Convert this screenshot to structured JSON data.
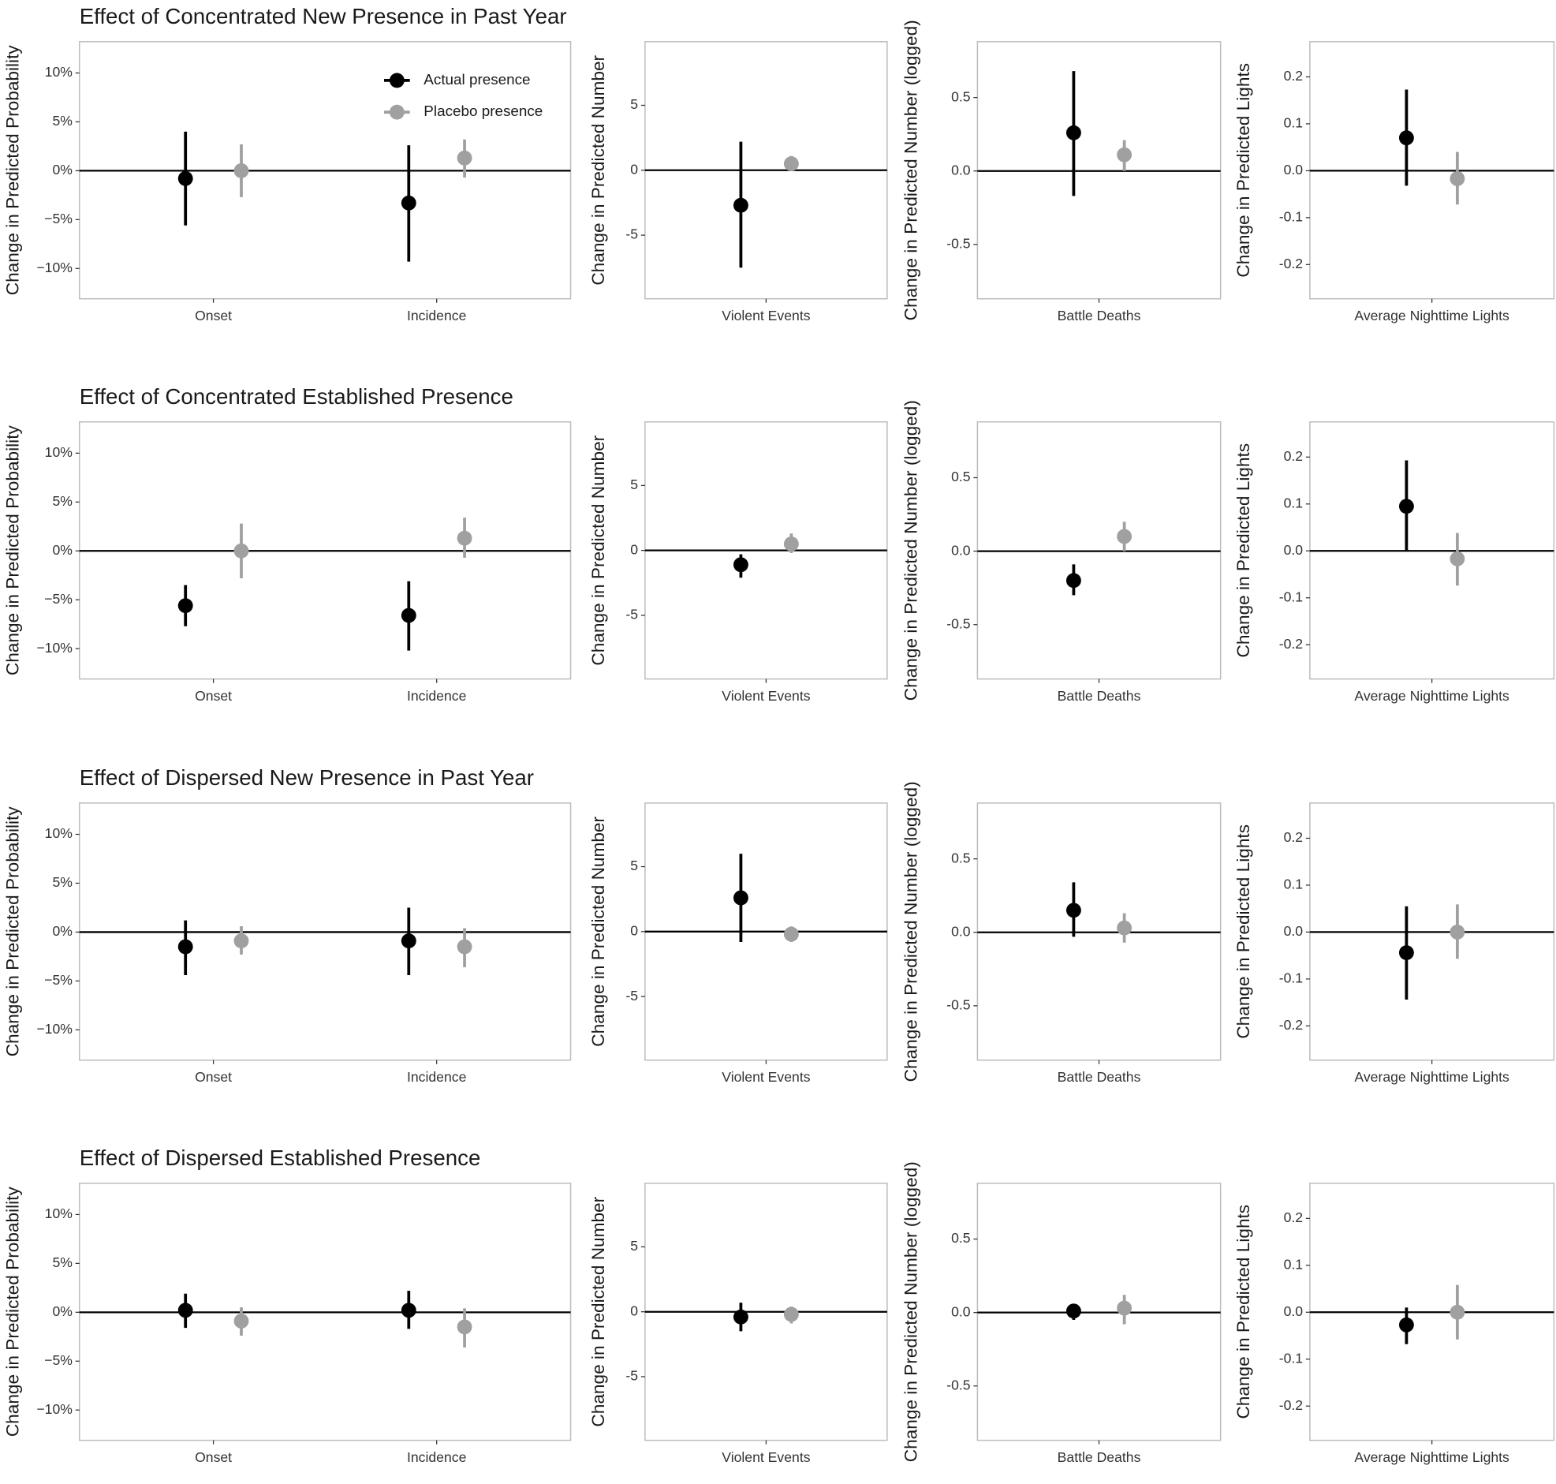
{
  "chart_data": [
    {
      "type": "pointrange",
      "title": "Effect of Concentrated New Presence in Past Year",
      "ylabel": "Change in Predicted Probability",
      "categories": [
        "Onset",
        "Incidence"
      ],
      "ylim": [
        -13.1,
        13.2
      ],
      "yticks": [
        {
          "value": 10,
          "label": "10%"
        },
        {
          "value": 5,
          "label": "5%"
        },
        {
          "value": 0,
          "label": "0%"
        },
        {
          "value": -5,
          "label": "−5%"
        },
        {
          "value": -10,
          "label": "−10%"
        }
      ],
      "reference_line": 0,
      "legend": "top-right",
      "series": [
        {
          "name": "Actual presence",
          "color": "#000000",
          "values": [
            -0.8,
            -3.3
          ],
          "lower": [
            -5.6,
            -9.3
          ],
          "upper": [
            4.0,
            2.6
          ]
        },
        {
          "name": "Placebo presence",
          "color": "#a0a0a0",
          "values": [
            0,
            1.3
          ],
          "lower": [
            -2.7,
            -0.7
          ],
          "upper": [
            2.7,
            3.2
          ]
        }
      ]
    },
    {
      "type": "pointrange",
      "ylabel": "Change in Predicted Number",
      "categories": [
        "Violent Events"
      ],
      "ylim": [
        -9.9,
        9.9
      ],
      "yticks": [
        5,
        0,
        -5
      ],
      "reference_line": 0,
      "series": [
        {
          "color": "#000000",
          "values": [
            -2.7
          ],
          "lower": [
            -7.5
          ],
          "upper": [
            2.2
          ]
        },
        {
          "color": "#a0a0a0",
          "values": [
            0.5
          ],
          "lower": [
            0.0
          ],
          "upper": [
            1.1
          ]
        }
      ]
    },
    {
      "type": "pointrange",
      "ylabel": "Change in Predicted Number (logged)",
      "categories": [
        "Battle Deaths"
      ],
      "ylim": [
        -0.87,
        0.88
      ],
      "yticks": [
        0.5,
        {
          "value": 0,
          "label": "0.0"
        },
        -0.5
      ],
      "reference_line": 0,
      "series": [
        {
          "color": "#000000",
          "values": [
            0.26
          ],
          "lower": [
            -0.17
          ],
          "upper": [
            0.68
          ]
        },
        {
          "color": "#a0a0a0",
          "values": [
            0.11
          ],
          "lower": [
            0.0
          ],
          "upper": [
            0.21
          ]
        }
      ]
    },
    {
      "type": "pointrange",
      "ylabel": "Change in Predicted Lights",
      "categories": [
        "Average Nighttime Lights"
      ],
      "ylim": [
        -0.273,
        0.275
      ],
      "yticks": [
        0.2,
        0.1,
        {
          "value": 0,
          "label": "0.0"
        },
        -0.1,
        -0.2
      ],
      "reference_line": 0,
      "series": [
        {
          "color": "#000000",
          "values": [
            0.07
          ],
          "lower": [
            -0.032
          ],
          "upper": [
            0.173
          ]
        },
        {
          "color": "#a0a0a0",
          "values": [
            -0.017
          ],
          "lower": [
            -0.072
          ],
          "upper": [
            0.04
          ]
        }
      ]
    },
    {
      "type": "pointrange",
      "title": "Effect of Concentrated Established Presence",
      "ylabel": "Change in Predicted Probability",
      "categories": [
        "Onset",
        "Incidence"
      ],
      "ylim": [
        -13.1,
        13.2
      ],
      "yticks": [
        {
          "value": 10,
          "label": "10%"
        },
        {
          "value": 5,
          "label": "5%"
        },
        {
          "value": 0,
          "label": "0%"
        },
        {
          "value": -5,
          "label": "−5%"
        },
        {
          "value": -10,
          "label": "−10%"
        }
      ],
      "reference_line": 0,
      "series": [
        {
          "color": "#000000",
          "values": [
            -5.6,
            -6.6
          ],
          "lower": [
            -7.7,
            -10.2
          ],
          "upper": [
            -3.5,
            -3.1
          ]
        },
        {
          "color": "#a0a0a0",
          "values": [
            0,
            1.3
          ],
          "lower": [
            -2.8,
            -0.7
          ],
          "upper": [
            2.8,
            3.4
          ]
        }
      ]
    },
    {
      "type": "pointrange",
      "ylabel": "Change in Predicted Number",
      "categories": [
        "Violent Events"
      ],
      "ylim": [
        -9.9,
        9.9
      ],
      "yticks": [
        5,
        0,
        -5
      ],
      "reference_line": 0,
      "series": [
        {
          "color": "#000000",
          "values": [
            -1.1
          ],
          "lower": [
            -2.1
          ],
          "upper": [
            -0.3
          ]
        },
        {
          "color": "#a0a0a0",
          "values": [
            0.5
          ],
          "lower": [
            -0.2
          ],
          "upper": [
            1.3
          ]
        }
      ]
    },
    {
      "type": "pointrange",
      "ylabel": "Change in Predicted Number (logged)",
      "categories": [
        "Battle Deaths"
      ],
      "ylim": [
        -0.87,
        0.88
      ],
      "yticks": [
        0.5,
        {
          "value": 0,
          "label": "0.0"
        },
        -0.5
      ],
      "reference_line": 0,
      "series": [
        {
          "color": "#000000",
          "values": [
            -0.2
          ],
          "lower": [
            -0.3
          ],
          "upper": [
            -0.09
          ]
        },
        {
          "color": "#a0a0a0",
          "values": [
            0.1
          ],
          "lower": [
            0.0
          ],
          "upper": [
            0.2
          ]
        }
      ]
    },
    {
      "type": "pointrange",
      "ylabel": "Change in Predicted Lights",
      "categories": [
        "Average Nighttime Lights"
      ],
      "ylim": [
        -0.273,
        0.275
      ],
      "yticks": [
        0.2,
        0.1,
        {
          "value": 0,
          "label": "0.0"
        },
        -0.1,
        -0.2
      ],
      "reference_line": 0,
      "series": [
        {
          "color": "#000000",
          "values": [
            0.095
          ],
          "lower": [
            0.0
          ],
          "upper": [
            0.193
          ]
        },
        {
          "color": "#a0a0a0",
          "values": [
            -0.017
          ],
          "lower": [
            -0.074
          ],
          "upper": [
            0.038
          ]
        }
      ]
    },
    {
      "type": "pointrange",
      "title": "Effect of Dispersed New Presence in Past Year",
      "ylabel": "Change in Predicted Probability",
      "categories": [
        "Onset",
        "Incidence"
      ],
      "ylim": [
        -13.1,
        13.2
      ],
      "yticks": [
        {
          "value": 10,
          "label": "10%"
        },
        {
          "value": 5,
          "label": "5%"
        },
        {
          "value": 0,
          "label": "0%"
        },
        {
          "value": -5,
          "label": "−5%"
        },
        {
          "value": -10,
          "label": "−10%"
        }
      ],
      "reference_line": 0,
      "series": [
        {
          "color": "#000000",
          "values": [
            -1.5,
            -0.9
          ],
          "lower": [
            -4.4,
            -4.4
          ],
          "upper": [
            1.2,
            2.5
          ]
        },
        {
          "color": "#a0a0a0",
          "values": [
            -0.9,
            -1.5
          ],
          "lower": [
            -2.3,
            -3.6
          ],
          "upper": [
            0.6,
            0.4
          ]
        }
      ]
    },
    {
      "type": "pointrange",
      "ylabel": "Change in Predicted Number",
      "categories": [
        "Violent Events"
      ],
      "ylim": [
        -9.9,
        9.9
      ],
      "yticks": [
        5,
        0,
        -5
      ],
      "reference_line": 0,
      "series": [
        {
          "color": "#000000",
          "values": [
            2.6
          ],
          "lower": [
            -0.8
          ],
          "upper": [
            6.0
          ]
        },
        {
          "color": "#a0a0a0",
          "values": [
            -0.2
          ],
          "lower": [
            -0.8
          ],
          "upper": [
            0.4
          ]
        }
      ]
    },
    {
      "type": "pointrange",
      "ylabel": "Change in Predicted Number (logged)",
      "categories": [
        "Battle Deaths"
      ],
      "ylim": [
        -0.87,
        0.88
      ],
      "yticks": [
        0.5,
        {
          "value": 0,
          "label": "0.0"
        },
        -0.5
      ],
      "reference_line": 0,
      "series": [
        {
          "color": "#000000",
          "values": [
            0.15
          ],
          "lower": [
            -0.03
          ],
          "upper": [
            0.34
          ]
        },
        {
          "color": "#a0a0a0",
          "values": [
            0.03
          ],
          "lower": [
            -0.07
          ],
          "upper": [
            0.13
          ]
        }
      ]
    },
    {
      "type": "pointrange",
      "ylabel": "Change in Predicted Lights",
      "categories": [
        "Average Nighttime Lights"
      ],
      "ylim": [
        -0.273,
        0.275
      ],
      "yticks": [
        0.2,
        0.1,
        {
          "value": 0,
          "label": "0.0"
        },
        -0.1,
        -0.2
      ],
      "reference_line": 0,
      "series": [
        {
          "color": "#000000",
          "values": [
            -0.044
          ],
          "lower": [
            -0.144
          ],
          "upper": [
            0.055
          ]
        },
        {
          "color": "#a0a0a0",
          "values": [
            0.0
          ],
          "lower": [
            -0.057
          ],
          "upper": [
            0.059
          ]
        }
      ]
    },
    {
      "type": "pointrange",
      "title": "Effect of Dispersed Established Presence",
      "ylabel": "Change in Predicted Probability",
      "categories": [
        "Onset",
        "Incidence"
      ],
      "ylim": [
        -13.1,
        13.2
      ],
      "yticks": [
        {
          "value": 10,
          "label": "10%"
        },
        {
          "value": 5,
          "label": "5%"
        },
        {
          "value": 0,
          "label": "0%"
        },
        {
          "value": -5,
          "label": "−5%"
        },
        {
          "value": -10,
          "label": "−10%"
        }
      ],
      "reference_line": 0,
      "series": [
        {
          "color": "#000000",
          "values": [
            0.2,
            0.2
          ],
          "lower": [
            -1.6,
            -1.7
          ],
          "upper": [
            1.9,
            2.2
          ]
        },
        {
          "color": "#a0a0a0",
          "values": [
            -0.9,
            -1.5
          ],
          "lower": [
            -2.4,
            -3.6
          ],
          "upper": [
            0.5,
            0.4
          ]
        }
      ]
    },
    {
      "type": "pointrange",
      "ylabel": "Change in Predicted Number",
      "categories": [
        "Violent Events"
      ],
      "ylim": [
        -9.9,
        9.9
      ],
      "yticks": [
        5,
        0,
        -5
      ],
      "reference_line": 0,
      "series": [
        {
          "color": "#000000",
          "values": [
            -0.4
          ],
          "lower": [
            -1.5
          ],
          "upper": [
            0.7
          ]
        },
        {
          "color": "#a0a0a0",
          "values": [
            -0.2
          ],
          "lower": [
            -0.9
          ],
          "upper": [
            0.4
          ]
        }
      ]
    },
    {
      "type": "pointrange",
      "ylabel": "Change in Predicted Number (logged)",
      "categories": [
        "Battle Deaths"
      ],
      "ylim": [
        -0.87,
        0.88
      ],
      "yticks": [
        0.5,
        {
          "value": 0,
          "label": "0.0"
        },
        -0.5
      ],
      "reference_line": 0,
      "series": [
        {
          "color": "#000000",
          "values": [
            0.01
          ],
          "lower": [
            -0.05
          ],
          "upper": [
            0.06
          ]
        },
        {
          "color": "#a0a0a0",
          "values": [
            0.03
          ],
          "lower": [
            -0.08
          ],
          "upper": [
            0.12
          ]
        }
      ]
    },
    {
      "type": "pointrange",
      "ylabel": "Change in Predicted Lights",
      "categories": [
        "Average Nighttime Lights"
      ],
      "ylim": [
        -0.273,
        0.275
      ],
      "yticks": [
        0.2,
        0.1,
        {
          "value": 0,
          "label": "0.0"
        },
        -0.1,
        -0.2
      ],
      "reference_line": 0,
      "series": [
        {
          "color": "#000000",
          "values": [
            -0.027
          ],
          "lower": [
            -0.068
          ],
          "upper": [
            0.01
          ]
        },
        {
          "color": "#a0a0a0",
          "values": [
            0.0
          ],
          "lower": [
            -0.058
          ],
          "upper": [
            0.058
          ]
        }
      ]
    }
  ]
}
